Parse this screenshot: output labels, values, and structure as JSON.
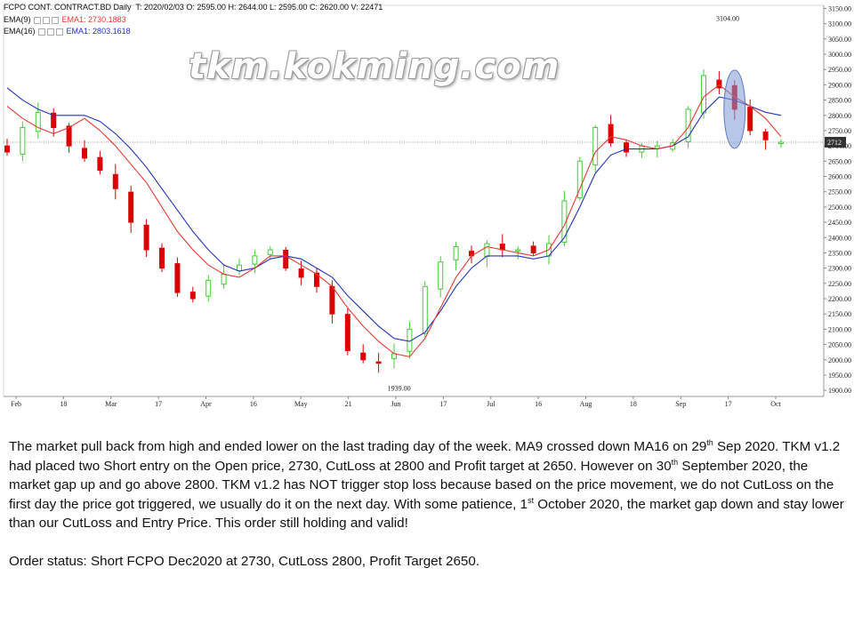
{
  "chart_header": {
    "symbol": "FCPO CONT. CONTRACT.BD Daily",
    "ohlcv": "T: 2020/02/03  O: 2595.00  H: 2644.00  L: 2595.00  C: 2620.00  V: 22471",
    "ema9_label": "EMA(9)",
    "ema9_value": "EMA1: 2730.1883",
    "ema16_label": "EMA(16)",
    "ema16_value": "EMA1: 2803.1618"
  },
  "watermark": "tkm.kokming.com",
  "colors": {
    "bull": "#44cc33",
    "bear": "#dd0000",
    "ema9": "#e53935",
    "ema16": "#2233bb",
    "ellipse": "#7d98d6"
  },
  "chart_data": {
    "type": "candlestick",
    "ylim": [
      1880,
      3160
    ],
    "yticks": [
      "3150.00",
      "3100.00",
      "3050.00",
      "3000.00",
      "2950.00",
      "2900.00",
      "2850.00",
      "2800.00",
      "2750.00",
      "2700.00",
      "2650.00",
      "2600.00",
      "2550.00",
      "2500.00",
      "2450.00",
      "2400.00",
      "2350.00",
      "2300.00",
      "2250.00",
      "2200.00",
      "2150.00",
      "2100.00",
      "2050.00",
      "2000.00",
      "1950.00",
      "1900.00"
    ],
    "xticks": [
      "Feb",
      "18",
      "Mar",
      "17",
      "Apr",
      "16",
      "May",
      "21",
      "Jun",
      "17",
      "Jul",
      "16",
      "Aug",
      "18",
      "Sep",
      "17",
      "Oct"
    ],
    "last_price_label": "2712",
    "last_price": 2712,
    "annotations": [
      {
        "text": "3104.00",
        "value": 3104
      },
      {
        "text": "1939.00",
        "value": 1939
      }
    ],
    "ema9": [
      2830,
      2790,
      2760,
      2740,
      2760,
      2790,
      2750,
      2700,
      2640,
      2580,
      2500,
      2420,
      2360,
      2310,
      2280,
      2270,
      2300,
      2340,
      2340,
      2310,
      2280,
      2240,
      2170,
      2110,
      2060,
      2020,
      2010,
      2070,
      2170,
      2270,
      2340,
      2370,
      2360,
      2350,
      2340,
      2360,
      2440,
      2560,
      2680,
      2730,
      2720,
      2700,
      2690,
      2700,
      2760,
      2860,
      2900,
      2860,
      2830,
      2790,
      2730
    ],
    "ema16": [
      2890,
      2850,
      2820,
      2800,
      2800,
      2800,
      2780,
      2740,
      2690,
      2630,
      2560,
      2490,
      2420,
      2360,
      2310,
      2290,
      2300,
      2330,
      2340,
      2330,
      2300,
      2270,
      2210,
      2160,
      2110,
      2070,
      2060,
      2090,
      2160,
      2240,
      2300,
      2340,
      2340,
      2340,
      2330,
      2340,
      2400,
      2500,
      2610,
      2670,
      2690,
      2690,
      2690,
      2700,
      2730,
      2810,
      2860,
      2850,
      2830,
      2810,
      2800
    ],
    "closes": [
      2680,
      2760,
      2810,
      2760,
      2700,
      2660,
      2620,
      2560,
      2450,
      2360,
      2300,
      2220,
      2200,
      2260,
      2280,
      2310,
      2340,
      2360,
      2300,
      2270,
      2240,
      2150,
      2030,
      2000,
      1990,
      2020,
      2100,
      2240,
      2320,
      2370,
      2340,
      2380,
      2360,
      2360,
      2350,
      2380,
      2520,
      2650,
      2760,
      2710,
      2680,
      2700,
      2700,
      2710,
      2820,
      2930,
      2890,
      2820,
      2750,
      2720,
      2712
    ]
  },
  "commentary": {
    "p1_a": "The market pull back from high and ended lower on the last trading day of the week. MA9 crossed down MA16 on 29",
    "p1_sup1": "th",
    "p1_b": " Sep 2020. TKM v1.2 had placed two Short entry on the Open price, 2730, CutLoss at 2800 and Profit target at 2650. However on 30",
    "p1_sup2": "th",
    "p1_c": " September 2020, the market gap up and go above 2800. TKM v1.2 has NOT trigger stop loss because based on the price movement, we do not CutLoss on the first day the price got triggered, we usually do it on the next day. With some patience, 1",
    "p1_sup3": "st",
    "p1_d": " October 2020, the market gap down and stay lower than our CutLoss and Entry Price. This order still holding and valid!",
    "p2": "Order status: Short FCPO Dec2020 at 2730, CutLoss 2800, Profit Target 2650."
  }
}
